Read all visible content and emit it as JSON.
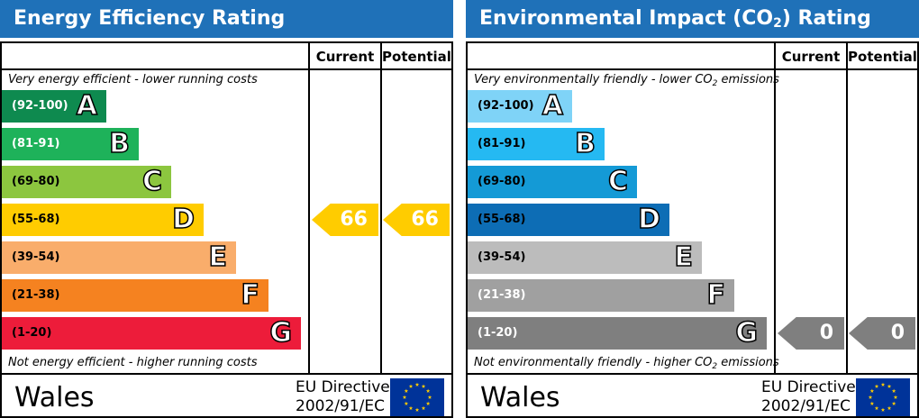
{
  "chart_data": [
    {
      "type": "bar",
      "title": "Energy Efficiency Rating",
      "columns": [
        "Current",
        "Potential"
      ],
      "top_note": "Very energy efficient - lower running costs",
      "bottom_note": "Not energy efficient - higher running costs",
      "bands": [
        {
          "range": "(92-100)",
          "letter": "A",
          "color": "#0e8a4f",
          "range_color": "#ffffff"
        },
        {
          "range": "(81-91)",
          "letter": "B",
          "color": "#1eb25a",
          "range_color": "#ffffff"
        },
        {
          "range": "(69-80)",
          "letter": "C",
          "color": "#8cc63f",
          "range_color": "#000000"
        },
        {
          "range": "(55-68)",
          "letter": "D",
          "color": "#ffcc00",
          "range_color": "#000000"
        },
        {
          "range": "(39-54)",
          "letter": "E",
          "color": "#f9ad6b",
          "range_color": "#000000"
        },
        {
          "range": "(21-38)",
          "letter": "F",
          "color": "#f58220",
          "range_color": "#000000"
        },
        {
          "range": "(1-20)",
          "letter": "G",
          "color": "#ed1c3a",
          "range_color": "#000000"
        }
      ],
      "current": {
        "value": "66",
        "band": "D",
        "color": "#ffcc00"
      },
      "potential": {
        "value": "66",
        "band": "D",
        "color": "#ffcc00"
      },
      "region": "Wales",
      "directive_line1": "EU Directive",
      "directive_line2": "2002/91/EC"
    },
    {
      "type": "bar",
      "title_prefix": "Environmental Impact (CO",
      "title_sub": "2",
      "title_suffix": ") Rating",
      "columns": [
        "Current",
        "Potential"
      ],
      "top_note_prefix": "Very environmentally friendly - lower CO",
      "top_note_sub": "2",
      "top_note_suffix": " emissions",
      "bottom_note_prefix": "Not environmentally friendly - higher CO",
      "bottom_note_sub": "2",
      "bottom_note_suffix": " emissions",
      "bands": [
        {
          "range": "(92-100)",
          "letter": "A",
          "color": "#7fd3f7",
          "range_color": "#000000"
        },
        {
          "range": "(81-91)",
          "letter": "B",
          "color": "#25b9f2",
          "range_color": "#000000"
        },
        {
          "range": "(69-80)",
          "letter": "C",
          "color": "#149ad6",
          "range_color": "#000000"
        },
        {
          "range": "(55-68)",
          "letter": "D",
          "color": "#0d6db5",
          "range_color": "#000000"
        },
        {
          "range": "(39-54)",
          "letter": "E",
          "color": "#bcbcbc",
          "range_color": "#000000"
        },
        {
          "range": "(21-38)",
          "letter": "F",
          "color": "#a0a0a0",
          "range_color": "#ffffff"
        },
        {
          "range": "(1-20)",
          "letter": "G",
          "color": "#7f7f7f",
          "range_color": "#ffffff"
        }
      ],
      "current": {
        "value": "0",
        "band": "G",
        "color": "#7f7f7f"
      },
      "potential": {
        "value": "0",
        "band": "G",
        "color": "#7f7f7f"
      },
      "region": "Wales",
      "directive_line1": "EU Directive",
      "directive_line2": "2002/91/EC"
    }
  ]
}
